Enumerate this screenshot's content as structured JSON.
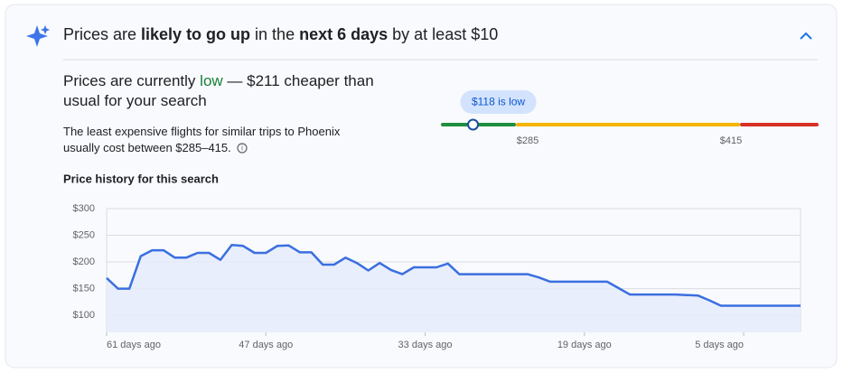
{
  "header": {
    "parts": [
      "Prices are ",
      "likely to go up",
      " in the ",
      "next 6 days",
      " by at least $10"
    ]
  },
  "summary": {
    "parts": [
      "Prices are currently ",
      "low",
      " — $211 cheaper than usual for your search"
    ]
  },
  "description": "The least expensive flights for similar trips to Phoenix usually cost between $285–415.",
  "price_gauge": {
    "badge": "$118 is low",
    "current": 118,
    "low_threshold": {
      "value": 285,
      "label": "$285"
    },
    "high_threshold": {
      "value": 415,
      "label": "$415"
    }
  },
  "chart_data": {
    "type": "area",
    "title": "Price history for this search",
    "color": "#3b6fe0",
    "grid": true,
    "x": [
      -61,
      -60,
      -59,
      -58,
      -57,
      -56,
      -55,
      -54,
      -53,
      -52,
      -51,
      -50,
      -49,
      -48,
      -47,
      -46,
      -45,
      -44,
      -43,
      -42,
      -41,
      -40,
      -39,
      -38,
      -37,
      -36,
      -35,
      -34,
      -33,
      -32,
      -31,
      -30,
      -29,
      -28,
      -27,
      -26,
      -25,
      -24,
      -23,
      -22,
      -21,
      -20,
      -19,
      -18,
      -17,
      -16,
      -15,
      -14,
      -13,
      -12,
      -11,
      -10,
      -9,
      -8,
      -7,
      -6,
      -5,
      -4,
      -3,
      -2,
      -1,
      0
    ],
    "values": [
      170,
      150,
      150,
      211,
      222,
      222,
      208,
      208,
      217,
      217,
      204,
      232,
      230,
      217,
      217,
      230,
      231,
      218,
      218,
      195,
      195,
      208,
      198,
      184,
      198,
      185,
      177,
      190,
      190,
      190,
      197,
      177,
      177,
      177,
      177,
      177,
      177,
      177,
      171,
      163,
      163,
      163,
      163,
      163,
      163,
      151,
      139,
      139,
      139,
      139,
      139,
      138,
      137,
      128,
      118,
      118,
      118,
      118,
      118,
      118,
      118,
      118
    ],
    "xlim": [
      -61,
      0
    ],
    "xticks": [
      {
        "value": -61,
        "label": "61 days ago"
      },
      {
        "value": -47,
        "label": "47 days ago"
      },
      {
        "value": -33,
        "label": "33 days ago"
      },
      {
        "value": -19,
        "label": "19 days ago"
      },
      {
        "value": -5,
        "label": "5 days ago"
      }
    ],
    "ylim": [
      68,
      300
    ],
    "yticks": [
      {
        "value": 100,
        "label": "$100"
      },
      {
        "value": 150,
        "label": "$150"
      },
      {
        "value": 200,
        "label": "$200"
      },
      {
        "value": 250,
        "label": "$250"
      },
      {
        "value": 300,
        "label": "$300"
      }
    ]
  }
}
